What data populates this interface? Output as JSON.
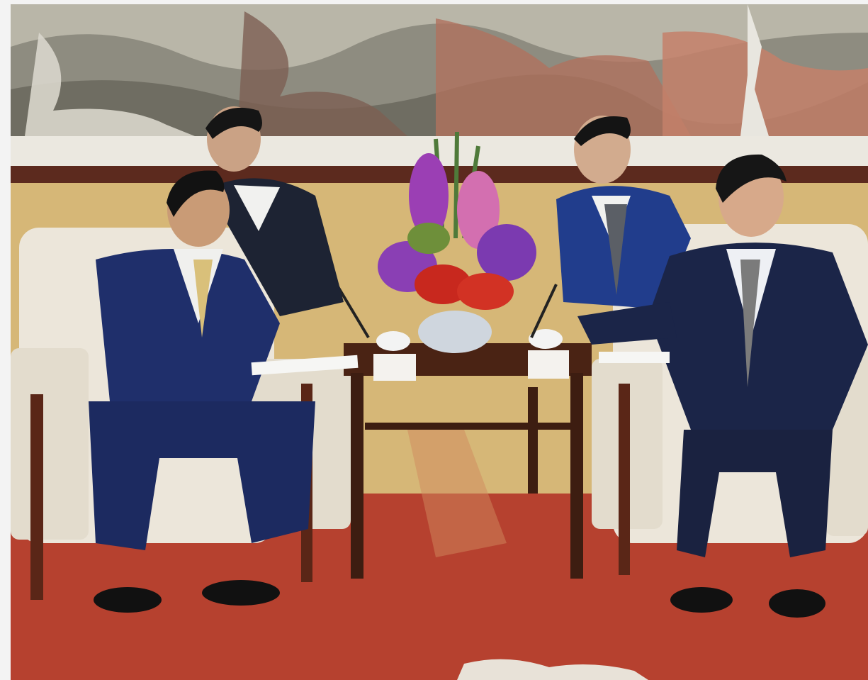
{
  "image": {
    "kind": "photograph",
    "colors": {
      "page_background": "#f3f3f3",
      "painting": "#9a9a8a",
      "wall": "#d8b97a",
      "carpet": "#b9412f",
      "chair": "#ece7dc",
      "suit_navy": "#1c2a5c",
      "table_wood": "#4a2416",
      "flowers_purple": "#8a3fb4",
      "flowers_red": "#c8281e"
    }
  }
}
